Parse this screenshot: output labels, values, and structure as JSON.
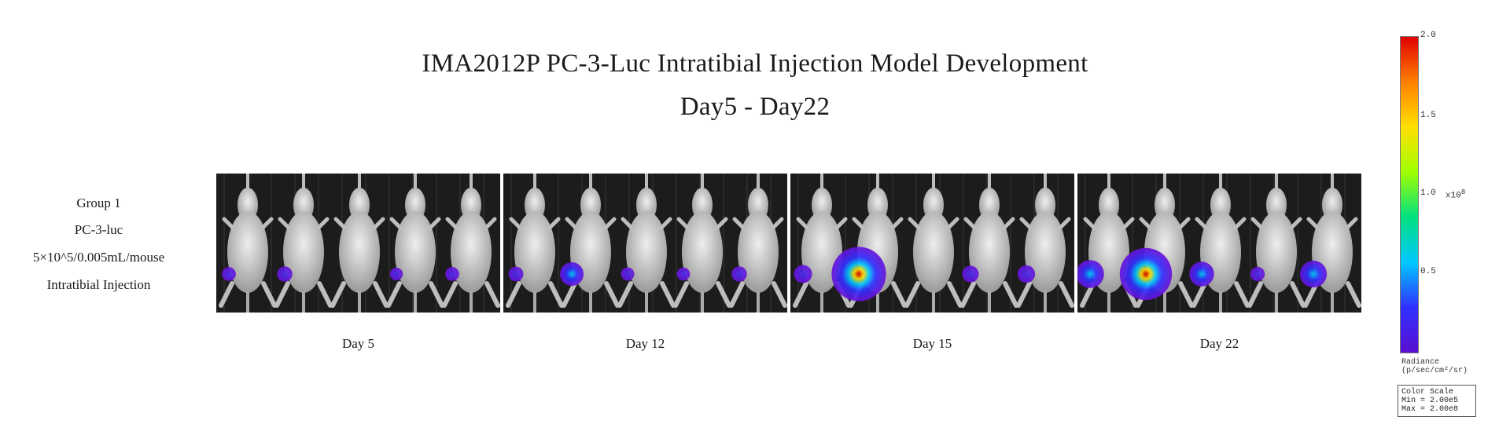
{
  "title": {
    "line1": "IMA2012P  PC-3-Luc Intratibial Injection Model Development",
    "line2": "Day5 - Day22"
  },
  "group_label": {
    "line1": "Group 1",
    "line2": "PC-3-luc",
    "line3": "5×10^5/0.005mL/mouse",
    "line4": "Intratibial Injection"
  },
  "panels": [
    {
      "label": "Day 5",
      "signals": [
        0.06,
        0.12,
        0.0,
        0.01,
        0.06
      ]
    },
    {
      "label": "Day 12",
      "signals": [
        0.1,
        0.5,
        0.03,
        0.02,
        0.12
      ]
    },
    {
      "label": "Day 15",
      "signals": [
        0.25,
        1.9,
        0.0,
        0.18,
        0.22
      ]
    },
    {
      "label": "Day 22",
      "signals": [
        0.7,
        1.8,
        0.55,
        0.08,
        0.65
      ]
    }
  ],
  "colorbar": {
    "max_label": "2.0",
    "ticks": [
      "1.5",
      "1.0",
      "0.5"
    ],
    "multiplier": "x10",
    "exponent": "8",
    "radiance_label": "Radiance",
    "radiance_unit": "(p/sec/cm²/sr)",
    "scale_title": "Color Scale",
    "scale_min": "Min = 2.00e5",
    "scale_max": "Max = 2.00e8",
    "colors": [
      "#5a0fd0",
      "#3030ff",
      "#00c8ff",
      "#00e080",
      "#a0ff00",
      "#ffe000",
      "#ff8000",
      "#e00000"
    ]
  }
}
